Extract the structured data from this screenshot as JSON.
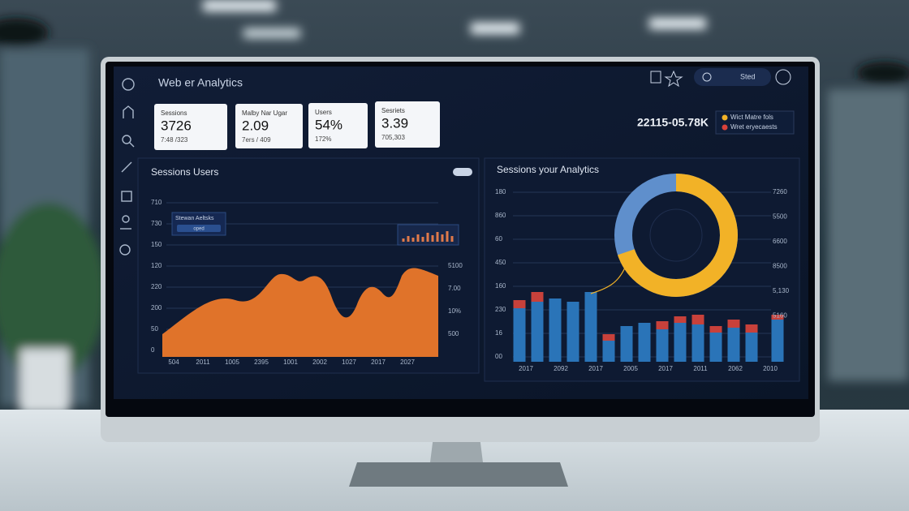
{
  "header": {
    "title": "Web er Analytics",
    "menu": "Sted"
  },
  "kpis": [
    {
      "label": "Sessions",
      "value": "3726",
      "sub": "7:48 /323"
    },
    {
      "label": "Malby Nar Ugar",
      "value": "2.09",
      "sub": "7ers / 409"
    },
    {
      "label": "Users",
      "value": "54%",
      "sub": "172%"
    },
    {
      "label": "Sesriets",
      "value": "3.39",
      "sub": "705,303"
    }
  ],
  "range": "22115-05.78K",
  "legend": [
    "Wict Matre fols",
    "Wret eryecaests"
  ],
  "left_panel": {
    "title": "Sessions Users",
    "inset_title": "Stewan Aeltsks",
    "inset_button": "oped",
    "y_left": [
      "710",
      "730",
      "150",
      "120",
      "220",
      "200",
      "50",
      "0"
    ],
    "y_right": [
      "5100",
      "7.00",
      "10%",
      "500"
    ],
    "x": [
      "504",
      "2011",
      "1005",
      "2395",
      "1001",
      "2002",
      "1027",
      "2017",
      "2027"
    ]
  },
  "right_panel": {
    "title": "Sessions your Analytics",
    "y_left": [
      "180",
      "860",
      "60",
      "450",
      "160",
      "230",
      "16",
      "00"
    ],
    "y_right": [
      "7260",
      "5500",
      "6600",
      "8500",
      "5,130",
      "5160"
    ],
    "x": [
      "2017",
      "2092",
      "2017",
      "2005",
      "2017",
      "2011",
      "2062",
      "2010"
    ]
  }
}
